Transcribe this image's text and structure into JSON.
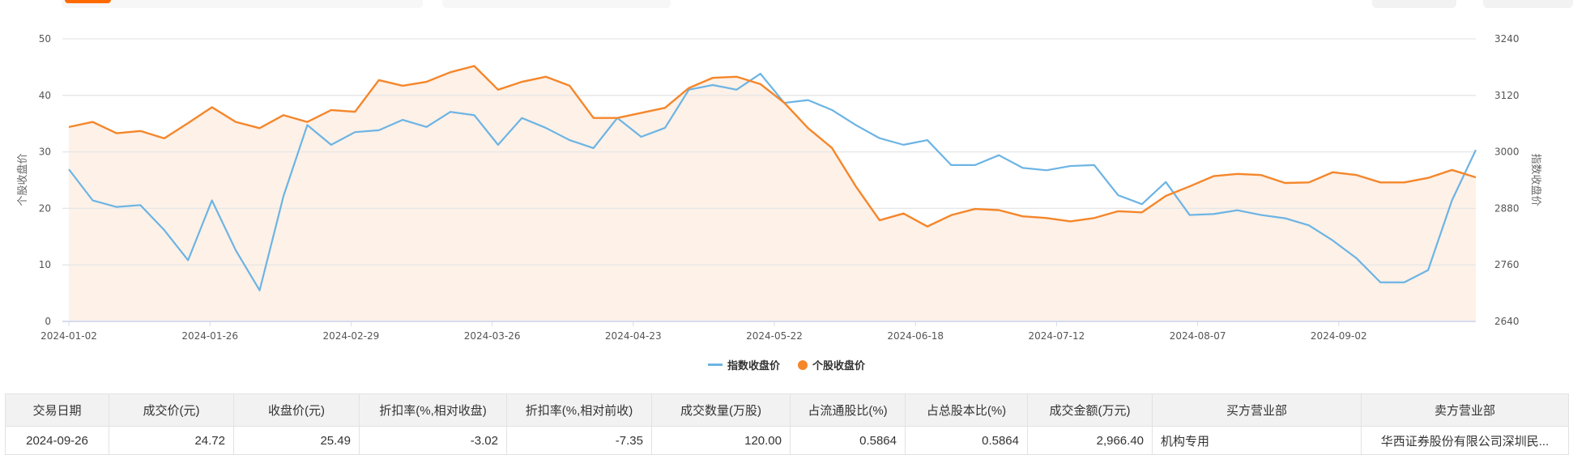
{
  "colors": {
    "index": "#6cb4e4",
    "stock": "#f5862a",
    "stock_fill": "#fdf1e8",
    "accent": "#ff6a00"
  },
  "chart_data": {
    "type": "line",
    "left_axis": {
      "label": "个股收盘价",
      "min": 0,
      "max": 50,
      "ticks": [
        0,
        10,
        20,
        30,
        40,
        50
      ]
    },
    "right_axis": {
      "label": "指数收盘价",
      "min": 2640,
      "max": 3240,
      "ticks": [
        2640,
        2760,
        2880,
        3000,
        3120,
        3240
      ]
    },
    "x_ticks": [
      "2024-01-02",
      "2024-01-26",
      "2024-02-29",
      "2024-03-26",
      "2024-04-23",
      "2024-05-22",
      "2024-06-18",
      "2024-07-12",
      "2024-08-07",
      "2024-09-02"
    ],
    "x_range": [
      "2024-01-02",
      "2024-09-26"
    ],
    "grid": true,
    "legend_position": "bottom",
    "series": [
      {
        "name": "指数收盘价",
        "axis": "right",
        "values": [
          2963,
          2897,
          2883,
          2887,
          2834,
          2770,
          2897,
          2791,
          2706,
          2906,
          3057,
          3015,
          3042,
          3046,
          3068,
          3053,
          3085,
          3078,
          3015,
          3072,
          3051,
          3025,
          3008,
          3072,
          3032,
          3051,
          3132,
          3142,
          3132,
          3166,
          3104,
          3110,
          3089,
          3057,
          3029,
          3015,
          3025,
          2972,
          2972,
          2993,
          2966,
          2961,
          2970,
          2972,
          2908,
          2889,
          2936,
          2866,
          2868,
          2876,
          2866,
          2859,
          2844,
          2812,
          2774,
          2723,
          2723,
          2749,
          2897,
          3004
        ]
      },
      {
        "name": "个股收盘价",
        "axis": "left",
        "area": true,
        "values": [
          34.4,
          35.3,
          33.3,
          33.7,
          32.4,
          35.1,
          37.9,
          35.3,
          34.2,
          36.5,
          35.3,
          37.4,
          37.1,
          42.7,
          41.7,
          42.4,
          44.1,
          45.2,
          41.0,
          42.4,
          43.3,
          41.7,
          36.0,
          36.0,
          36.9,
          37.8,
          41.3,
          43.1,
          43.3,
          42.0,
          38.7,
          34.2,
          30.7,
          23.9,
          17.9,
          19.1,
          16.8,
          18.8,
          19.9,
          19.7,
          18.6,
          18.3,
          17.7,
          18.3,
          19.5,
          19.3,
          22.2,
          23.9,
          25.7,
          26.1,
          25.9,
          24.5,
          24.6,
          26.4,
          25.9,
          24.6,
          24.6,
          25.4,
          26.8,
          25.5
        ]
      }
    ]
  },
  "legend": {
    "index": "指数收盘价",
    "stock": "个股收盘价"
  },
  "table": {
    "headers": [
      "交易日期",
      "成交价(元)",
      "收盘价(元)",
      "折扣率(%,相对收盘)",
      "折扣率(%,相对前收)",
      "成交数量(万股)",
      "占流通股比(%)",
      "占总股本比(%)",
      "成交金额(万元)",
      "买方营业部",
      "卖方营业部"
    ],
    "rows": [
      [
        "2024-09-26",
        "24.72",
        "25.49",
        "-3.02",
        "-7.35",
        "120.00",
        "0.5864",
        "0.5864",
        "2,966.40",
        "机构专用",
        "华西证券股份有限公司深圳民..."
      ]
    ]
  }
}
